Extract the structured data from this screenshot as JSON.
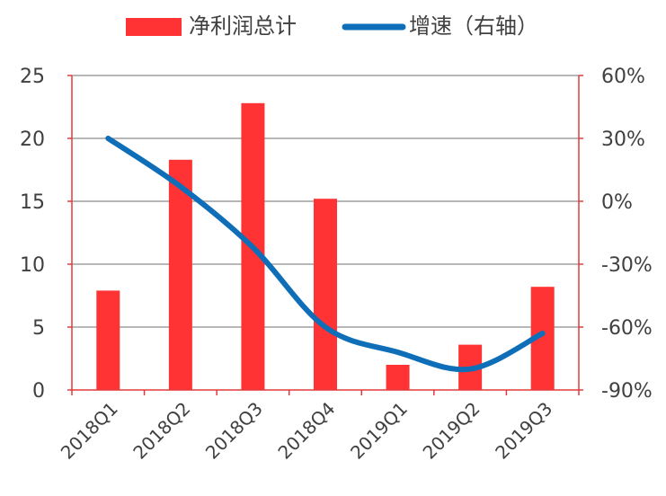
{
  "chart_data": {
    "type": "bar",
    "categories": [
      "2018Q1",
      "2018Q2",
      "2018Q3",
      "2018Q4",
      "2019Q1",
      "2019Q2",
      "2019Q3"
    ],
    "series": [
      {
        "name": "净利润总计",
        "kind": "bar",
        "axis": "left",
        "color": "#FF3333",
        "values": [
          7.9,
          18.3,
          22.8,
          15.2,
          2.0,
          3.6,
          8.2
        ]
      },
      {
        "name": "增速（右轴）",
        "kind": "line",
        "axis": "right",
        "color": "#0E6EB8",
        "values": [
          30,
          7,
          -22,
          -60,
          -72,
          -80,
          -63
        ]
      }
    ],
    "y_left": {
      "min": 0,
      "max": 25,
      "ticks": [
        0,
        5,
        10,
        15,
        20,
        25
      ],
      "tick_labels": [
        "0",
        "5",
        "10",
        "15",
        "20",
        "25"
      ]
    },
    "y_right": {
      "min": -90,
      "max": 60,
      "ticks": [
        -90,
        -60,
        -30,
        0,
        30,
        60
      ],
      "tick_labels": [
        "-90%",
        "-60%",
        "-30%",
        "0%",
        "30%",
        "60%"
      ]
    },
    "grid": true,
    "legend_position": "top"
  }
}
